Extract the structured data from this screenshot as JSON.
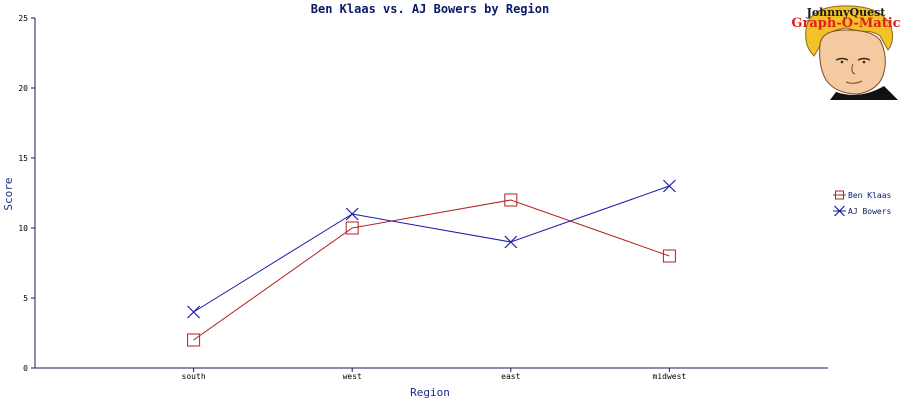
{
  "logo": {
    "brand_line1": "JohnnyQuest",
    "brand_line2": "Graph-O-Matic"
  },
  "chart_data": {
    "type": "line",
    "title": "Ben Klaas vs. AJ Bowers by Region",
    "xlabel": "Region",
    "ylabel": "Score",
    "categories": [
      "south",
      "west",
      "east",
      "midwest"
    ],
    "ylim": [
      0,
      25
    ],
    "yticks": [
      0,
      5,
      10,
      15,
      20,
      25
    ],
    "grid": false,
    "legend_position": "right",
    "series": [
      {
        "name": "Ben Klaas",
        "values": [
          2,
          10,
          12,
          8
        ],
        "color": "#b22222",
        "marker": "square"
      },
      {
        "name": "AJ Bowers",
        "values": [
          4,
          11,
          9,
          13
        ],
        "color": "#1a1aa6",
        "marker": "x"
      }
    ]
  }
}
